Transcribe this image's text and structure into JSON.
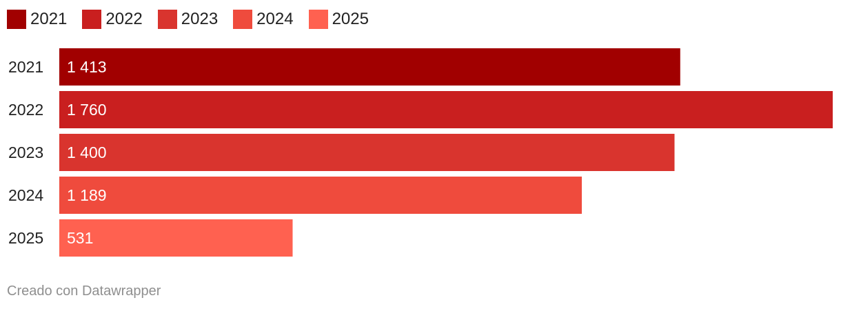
{
  "chart_data": {
    "type": "bar",
    "orientation": "horizontal",
    "categories": [
      "2021",
      "2022",
      "2023",
      "2024",
      "2025"
    ],
    "values": [
      1413,
      1760,
      1400,
      1189,
      531
    ],
    "value_labels": [
      "1 413",
      "1 760",
      "1 400",
      "1 189",
      "531"
    ],
    "colors": [
      "#a10000",
      "#c91f1f",
      "#d9342e",
      "#ef4b3d",
      "#ff6150"
    ],
    "legend": [
      {
        "label": "2021",
        "color": "#a10000"
      },
      {
        "label": "2022",
        "color": "#c91f1f"
      },
      {
        "label": "2023",
        "color": "#d9342e"
      },
      {
        "label": "2024",
        "color": "#ef4b3d"
      },
      {
        "label": "2025",
        "color": "#ff6150"
      }
    ],
    "legend_position": "top-left",
    "xlim": [
      0,
      1760
    ],
    "grid": false,
    "title": ""
  },
  "footer": {
    "credit": "Creado con Datawrapper"
  }
}
